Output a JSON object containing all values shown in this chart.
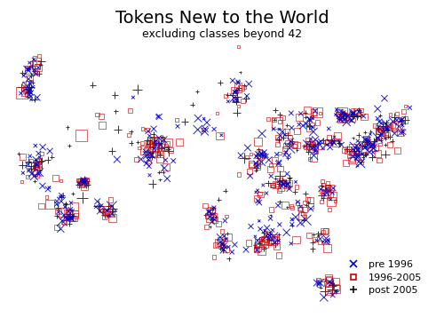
{
  "title": "Tokens New to the World",
  "subtitle": "excluding classes beyond 42",
  "title_fontsize": 14,
  "subtitle_fontsize": 9,
  "legend_entries": [
    "pre 1996",
    "1996-2005",
    "post 2005"
  ],
  "legend_colors": [
    "#0000cc",
    "#cc0000",
    "#111111"
  ],
  "legend_markers": [
    "x",
    "s",
    "+"
  ],
  "marker_size_base": 20,
  "background_color": "#ffffff",
  "us_xlim": [
    -125,
    -66
  ],
  "us_ylim": [
    24,
    50
  ],
  "fig_width": 5.0,
  "fig_height": 3.57,
  "dpi": 100,
  "map_color": "#f0f0f0",
  "border_color": "#888888",
  "border_lw": 0.5
}
